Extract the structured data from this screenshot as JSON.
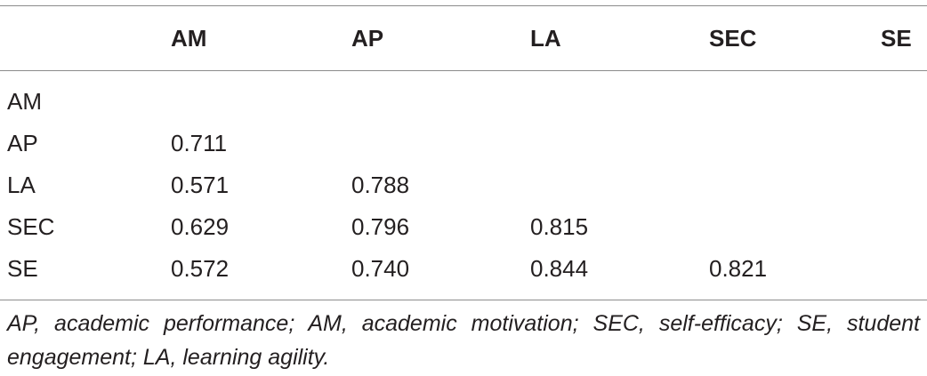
{
  "table": {
    "headers": [
      "",
      "AM",
      "AP",
      "LA",
      "SEC",
      "SE"
    ],
    "rows": [
      [
        "AM",
        "",
        "",
        "",
        "",
        ""
      ],
      [
        "AP",
        "0.711",
        "",
        "",
        "",
        ""
      ],
      [
        "LA",
        "0.571",
        "0.788",
        "",
        "",
        ""
      ],
      [
        "SEC",
        "0.629",
        "0.796",
        "0.815",
        "",
        ""
      ],
      [
        "SE",
        "0.572",
        "0.740",
        "0.844",
        "0.821",
        ""
      ]
    ]
  },
  "footnote": "AP, academic performance; AM, academic motivation; SEC, self-efficacy; SE, student engagement; LA, learning agility."
}
